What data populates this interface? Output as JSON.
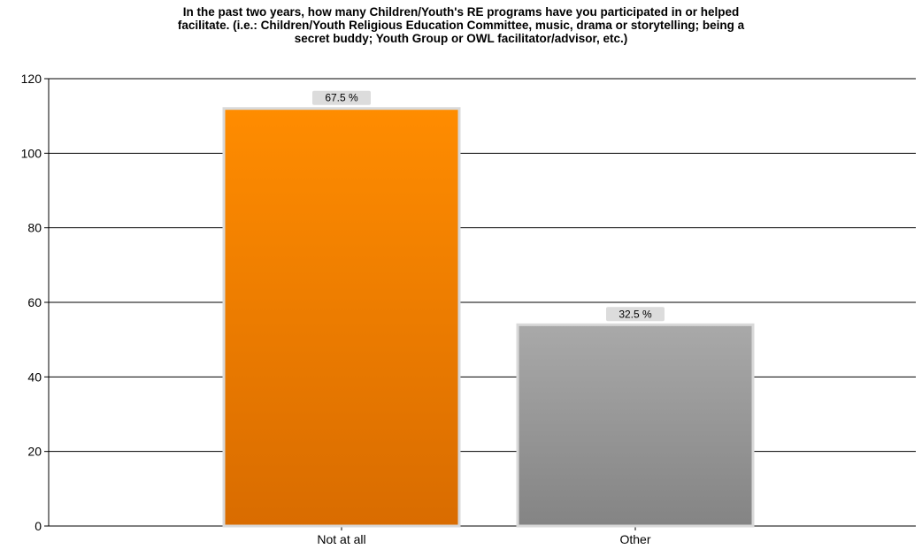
{
  "chart_data": {
    "type": "bar",
    "title": "In the past two years, how many Children/Youth's RE programs have you participated in or helped\nfacilitate.   (i.e.: Children/Youth Religious Education Committee, music, drama or storytelling; being a\nsecret buddy;  Youth Group or OWL facilitator/advisor, etc.)",
    "xlabel": "",
    "ylabel": "",
    "categories": [
      "Not at all",
      "Other"
    ],
    "values": [
      112,
      54
    ],
    "data_labels": [
      "67.5 %",
      "32.5 %"
    ],
    "ylim": [
      0,
      120
    ],
    "yticks": [
      0,
      20,
      40,
      60,
      80,
      100,
      120
    ],
    "grid": true,
    "legend": "none",
    "colors": {
      "bars": [
        {
          "top": "#ff8c00",
          "bottom": "#d96c00"
        },
        {
          "top": "#a9a9a9",
          "bottom": "#848484"
        }
      ],
      "bar_border": "#d9d9d9",
      "label_bg": "#dcdcdc",
      "gridline": "#000000"
    }
  }
}
